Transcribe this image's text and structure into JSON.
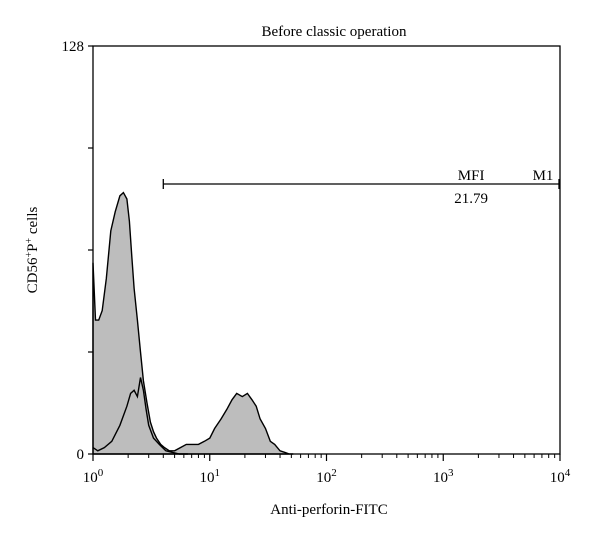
{
  "chart_data": {
    "type": "area",
    "title": "Before classic operation",
    "xlabel": "Anti-perforin-FITC",
    "ylabel_main": "CD56",
    "ylabel_sup1": "+",
    "ylabel_mid": "P",
    "ylabel_sup2": "+",
    "ylabel_tail": " cells",
    "x_scale": "log",
    "xlim": [
      1,
      10000
    ],
    "ylim": [
      0,
      128
    ],
    "x_ticks": [
      {
        "value": 1,
        "base": "10",
        "exp": "0"
      },
      {
        "value": 10,
        "base": "10",
        "exp": "1"
      },
      {
        "value": 100,
        "base": "10",
        "exp": "2"
      },
      {
        "value": 1000,
        "base": "10",
        "exp": "3"
      },
      {
        "value": 10000,
        "base": "10",
        "exp": "4"
      }
    ],
    "y_tick_labels": [
      {
        "value": 0,
        "label": "0"
      },
      {
        "value": 128,
        "label": "128"
      }
    ],
    "y_minor_ticks": [
      32,
      64,
      96
    ],
    "grid": false,
    "series": [
      {
        "style": "filled-gray",
        "x": [
          1,
          1.05,
          1.12,
          1.2,
          1.3,
          1.42,
          1.55,
          1.7,
          1.82,
          1.95,
          2.05,
          2.15,
          2.25,
          2.4,
          2.55,
          2.7,
          2.9,
          3.1,
          3.3,
          3.5,
          3.8,
          4.1,
          4.5,
          5,
          5.6,
          6.3,
          7,
          8,
          9,
          10,
          11,
          12.5,
          14,
          15.5,
          17,
          19,
          21,
          23,
          25,
          27,
          30,
          33,
          36,
          40,
          44,
          48,
          52
        ],
        "y": [
          60,
          42,
          42,
          45,
          55,
          70,
          76,
          81,
          82,
          80,
          73,
          62,
          52,
          42,
          32,
          23,
          16,
          10,
          7,
          5,
          3,
          2,
          1,
          1,
          2,
          3,
          3,
          3,
          4,
          5,
          8,
          11,
          14,
          17,
          19,
          18,
          19,
          17,
          15,
          11,
          8,
          4,
          3,
          1,
          0.5,
          0,
          0
        ]
      },
      {
        "style": "outline",
        "x": [
          1,
          1.1,
          1.25,
          1.45,
          1.7,
          1.95,
          2.1,
          2.25,
          2.4,
          2.55,
          2.7,
          2.85,
          3.0,
          3.3,
          3.7,
          4.2,
          4.8,
          5.5,
          6.5
        ],
        "y": [
          2,
          1,
          2,
          4,
          9,
          15,
          19,
          20,
          18,
          24,
          20,
          14,
          9,
          5,
          3,
          1,
          0.5,
          0,
          0
        ]
      }
    ],
    "marker": {
      "name": "M1",
      "range": [
        4,
        10000
      ],
      "stat_label": "MFI",
      "stat_value": "21.79"
    }
  }
}
